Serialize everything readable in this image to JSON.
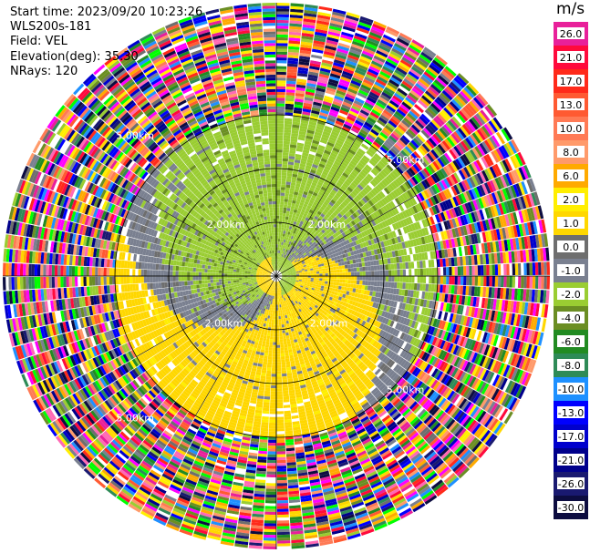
{
  "header": {
    "start_time": "Start time: 2023/09/20 10:23:26",
    "station": "WLS200s-181",
    "field": "Field: VEL",
    "elevation": "Elevation(deg): 35.30",
    "nrays": "NRays: 120"
  },
  "colorbar": {
    "unit": "m/s",
    "levels": [
      {
        "label": "26.0",
        "color": "#e8209a"
      },
      {
        "label": "21.0",
        "color": "#ff0a3c"
      },
      {
        "label": "17.0",
        "color": "#ff2a1a"
      },
      {
        "label": "13.0",
        "color": "#ff5a32"
      },
      {
        "label": "10.0",
        "color": "#ff7a55"
      },
      {
        "label": "8.0",
        "color": "#ff9a6a"
      },
      {
        "label": "6.0",
        "color": "#ffaa00"
      },
      {
        "label": "2.0",
        "color": "#ffee00"
      },
      {
        "label": "1.0",
        "color": "#ffd700"
      },
      {
        "label": "0.0",
        "color": "#6e6e6e"
      },
      {
        "label": "-1.0",
        "color": "#7a8090"
      },
      {
        "label": "-2.0",
        "color": "#9acd32"
      },
      {
        "label": "-4.0",
        "color": "#6b8e23"
      },
      {
        "label": "-6.0",
        "color": "#228b22"
      },
      {
        "label": "-8.0",
        "color": "#2e8b57"
      },
      {
        "label": "-10.0",
        "color": "#1e90ff"
      },
      {
        "label": "-13.0",
        "color": "#0000ff"
      },
      {
        "label": "-17.0",
        "color": "#0000cd"
      },
      {
        "label": "-21.0",
        "color": "#00008b"
      },
      {
        "label": "-26.0",
        "color": "#191970"
      },
      {
        "label": "-30.0",
        "color": "#0c0c40"
      }
    ]
  },
  "chart_data": {
    "type": "heatmap",
    "projection": "polar-ppi",
    "field": "VEL",
    "units": "m/s",
    "nrays": 120,
    "range_rings_km": [
      1,
      2,
      3
    ],
    "ring_labels": [
      "2.00km",
      "2.00km",
      "2.00km",
      "2.00km",
      "5.00km",
      "5.00km",
      "5.00km",
      "5.00km"
    ],
    "grid": true,
    "spokes": 12,
    "pattern": "dipole: positive (yellow) to the east/south, negative (green) to the west/north, noise beyond ~3 km"
  }
}
